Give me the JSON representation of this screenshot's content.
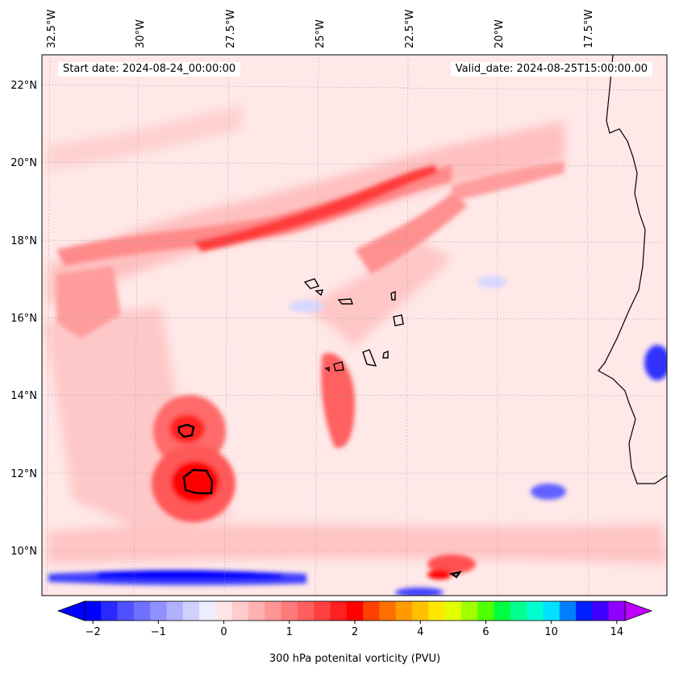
{
  "map": {
    "start_date_text": "Start date: 2024-08-24_00:00:00",
    "valid_date_text": "Valid_date: 2024-08-25T15:00:00.00",
    "lon_labels": [
      "32.5°W",
      "30°W",
      "27.5°W",
      "25°W",
      "22.5°W",
      "20°W",
      "17.5°W"
    ],
    "lat_labels": [
      "22°N",
      "20°N",
      "18°N",
      "16°N",
      "14°N",
      "12°N",
      "10°N"
    ],
    "colorbar": {
      "label": "300 hPa potenital vorticity (PVU)",
      "ticks": [
        "−2",
        "−1",
        "0",
        "1",
        "2",
        "4",
        "6",
        "10",
        "14"
      ],
      "colors": [
        "#0000ff",
        "#2a2aff",
        "#5050ff",
        "#7070ff",
        "#9090ff",
        "#b0b0ff",
        "#d0d0ff",
        "#eeeeff",
        "#ffe6e6",
        "#ffcccc",
        "#ffb0b0",
        "#ff9595",
        "#ff7a7a",
        "#ff5f5f",
        "#ff4040",
        "#ff2020",
        "#ff0000",
        "#ff4000",
        "#ff7000",
        "#ff9a00",
        "#ffc000",
        "#ffe800",
        "#e0ff00",
        "#a0ff00",
        "#50ff00",
        "#00ff40",
        "#00ff90",
        "#00ffd0",
        "#00e0ff",
        "#0080ff",
        "#0020ff",
        "#4000ff",
        "#9000ff"
      ],
      "under_color": "#0000ff",
      "over_color": "#c000ff"
    }
  }
}
